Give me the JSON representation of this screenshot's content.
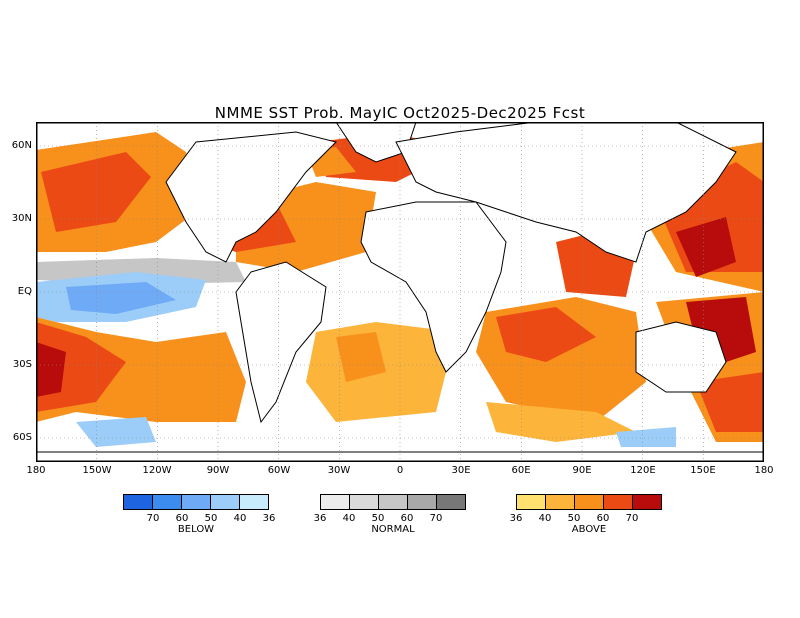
{
  "title": "NMME SST Prob. MayIC  Oct2025-Dec2025 Fcst",
  "lat_labels": [
    "60N",
    "30N",
    "EQ",
    "30S",
    "60S"
  ],
  "lon_labels": [
    "180",
    "150W",
    "120W",
    "90W",
    "60W",
    "30W",
    "0",
    "30E",
    "60E",
    "90E",
    "120E",
    "150E",
    "180"
  ],
  "legends": [
    {
      "name": "BELOW",
      "ticks": [
        "70",
        "60",
        "50",
        "40",
        "36"
      ],
      "colors": [
        "#1e64e0",
        "#3c8cf0",
        "#6eaaf5",
        "#9ccdf8",
        "#c8ecfc"
      ]
    },
    {
      "name": "NORMAL",
      "ticks": [
        "36",
        "40",
        "50",
        "60",
        "70"
      ],
      "colors": [
        "#ececec",
        "#dadada",
        "#c6c6c6",
        "#a8a8a8",
        "#787878"
      ]
    },
    {
      "name": "ABOVE",
      "ticks": [
        "36",
        "40",
        "50",
        "60",
        "70"
      ],
      "colors": [
        "#ffe170",
        "#fcb43a",
        "#f8901c",
        "#ec4a14",
        "#b80c0c"
      ]
    }
  ]
}
